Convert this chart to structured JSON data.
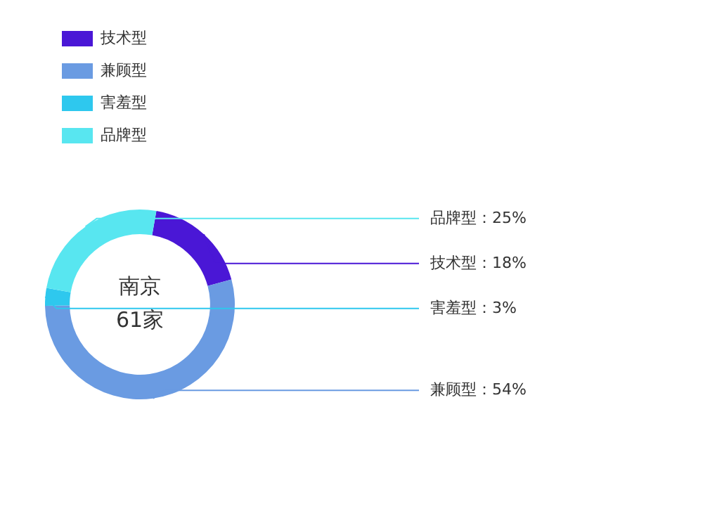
{
  "chart_data": {
    "type": "donut",
    "categories": [
      "技术型",
      "兼顾型",
      "害羞型",
      "品牌型"
    ],
    "values": [
      18,
      54,
      3,
      25
    ],
    "colors": [
      "#4a17d6",
      "#6a9be2",
      "#2ec8ee",
      "#58e6f0"
    ],
    "value_labels": [
      "技术型：18%",
      "兼顾型：54%",
      "害羞型：3%",
      "品牌型：25%"
    ],
    "annotations": [
      "南京",
      "61家"
    ],
    "legend": "top left"
  }
}
